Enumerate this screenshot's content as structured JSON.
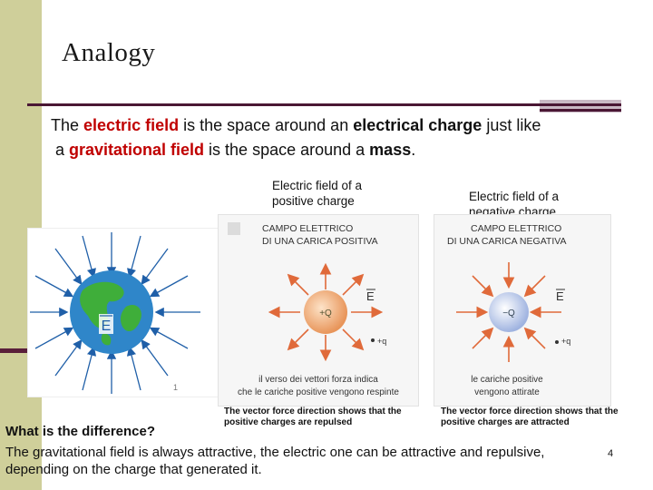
{
  "slide": {
    "title": "Analogy",
    "intro": {
      "p1": "The ",
      "electric_field": "electric field",
      "p2": " is the space around an ",
      "electrical_charge": "electrical charge",
      "p3": "  just like",
      "p4": "a ",
      "gravitational_field": "gravitational field",
      "p5": " is the space around a ",
      "mass": "mass",
      "p6": "."
    },
    "caption_positive": "Electric field of a positive charge",
    "caption_negative": "Electric field of a negative charge",
    "note_positive": "The vector force direction  shows  that the positive charges are repulsed",
    "note_negative": "The vector force direction  shows  that the positive charges are attracted",
    "question": "What is the difference?",
    "conclusion": "The gravitational field is always attractive, the electric one can be attractive and repulsive, depending on the charge that generated it.",
    "page_number": "4"
  },
  "panels": {
    "positive": {
      "title_line1": "CAMPO ELETTRICO",
      "title_line2": "DI UNA CARICA POSITIVA",
      "charge": "+Q",
      "field": "E",
      "test_charge": "+q",
      "note_line1": "il verso dei vettori forza indica",
      "note_line2": "che le cariche positive vengono respinte"
    },
    "negative": {
      "title_line1": "CAMPO ELETTRICO",
      "title_line2": "DI UNA CARICA NEGATIVA",
      "charge": "−Q",
      "field": "E",
      "test_charge": "+q",
      "note_line1": "le cariche positive",
      "note_line2": "vengono attirate"
    },
    "earth": {
      "field": "E",
      "index": "1"
    }
  },
  "colors": {
    "sidebar": "#cfcf9a",
    "rule": "#4a1734",
    "highlight": "#c00000",
    "positive_charge": "#f0b27a",
    "negative_charge": "#b9c8ea",
    "field_arrow": "#e06a3a",
    "earth_arrow": "#1f5fa8"
  }
}
